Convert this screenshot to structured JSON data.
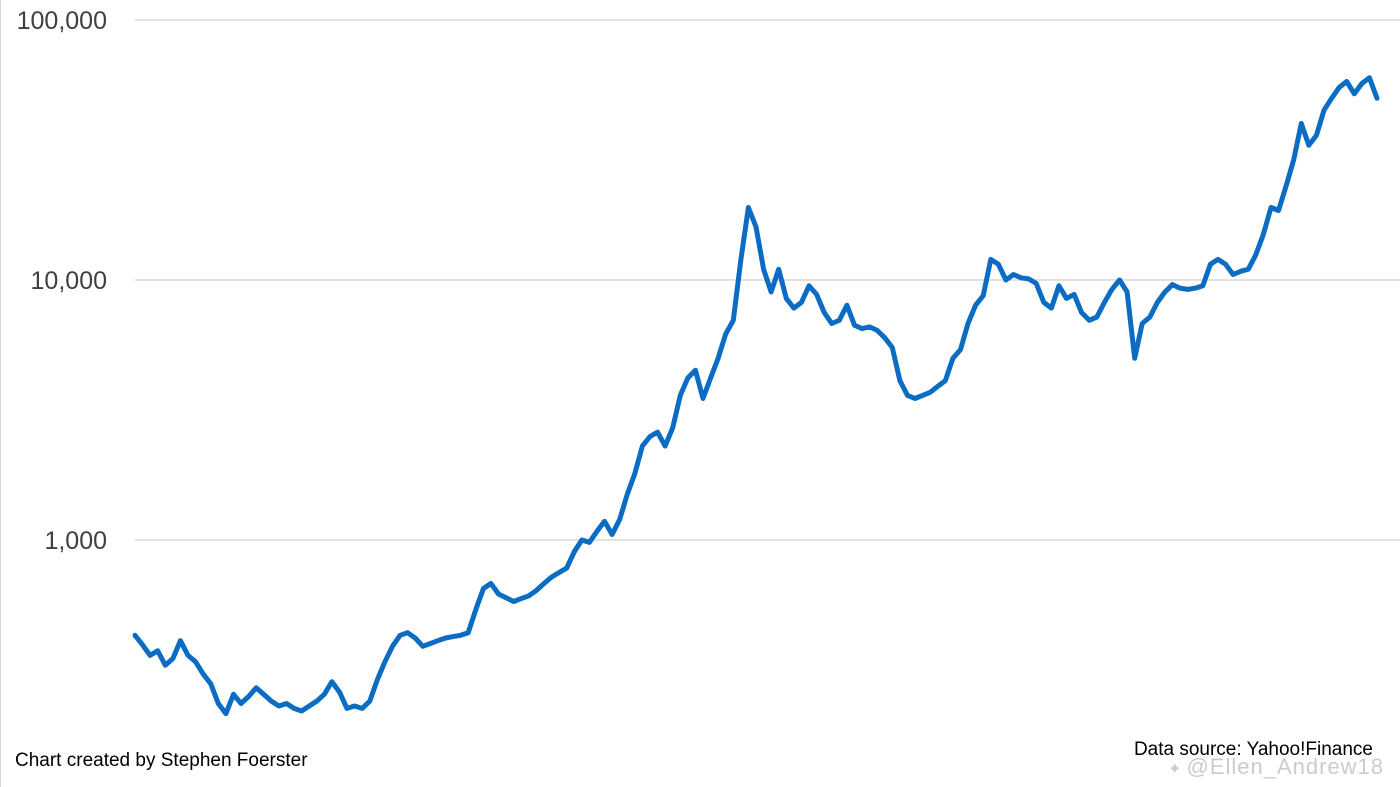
{
  "chart_data": {
    "type": "line",
    "title": "",
    "xlabel": "",
    "ylabel": "",
    "y_scale": "log",
    "ylim": [
      200,
      100000
    ],
    "y_ticks": [
      {
        "value": 1000,
        "label": "1,000"
      },
      {
        "value": 10000,
        "label": "10,000"
      },
      {
        "value": 100000,
        "label": "100,000"
      }
    ],
    "grid": "horizontal",
    "line_color": "#0a6cc2",
    "gridline_color": "#d9d9d9",
    "series": [
      {
        "values": [
          430,
          395,
          360,
          375,
          330,
          350,
          410,
          360,
          340,
          305,
          280,
          235,
          215,
          255,
          235,
          250,
          270,
          255,
          240,
          230,
          235,
          225,
          220,
          230,
          240,
          255,
          285,
          260,
          225,
          230,
          225,
          240,
          290,
          340,
          390,
          430,
          440,
          420,
          390,
          400,
          410,
          420,
          425,
          430,
          440,
          540,
          650,
          680,
          620,
          600,
          580,
          595,
          610,
          640,
          680,
          720,
          750,
          780,
          900,
          1000,
          980,
          1080,
          1180,
          1050,
          1200,
          1500,
          1800,
          2300,
          2500,
          2600,
          2300,
          2700,
          3600,
          4200,
          4500,
          3500,
          4200,
          5000,
          6200,
          7000,
          12000,
          19000,
          16000,
          11000,
          9000,
          11000,
          8500,
          7800,
          8200,
          9500,
          8800,
          7500,
          6800,
          7000,
          8000,
          6700,
          6500,
          6600,
          6400,
          6000,
          5500,
          4100,
          3600,
          3500,
          3600,
          3700,
          3900,
          4100,
          5000,
          5400,
          6800,
          8000,
          8700,
          12000,
          11500,
          10000,
          10500,
          10200,
          10100,
          9700,
          8200,
          7800,
          9500,
          8500,
          8800,
          7500,
          7000,
          7200,
          8200,
          9200,
          10000,
          9000,
          5000,
          6800,
          7200,
          8200,
          9000,
          9600,
          9300,
          9200,
          9300,
          9500,
          11500,
          12000,
          11500,
          10500,
          10800,
          11000,
          12500,
          15000,
          19000,
          18500,
          23000,
          29000,
          40000,
          33000,
          36000,
          45000,
          50000,
          55000,
          58000,
          52000,
          57000,
          60000,
          50000
        ]
      }
    ]
  },
  "footer": {
    "credit": "Chart created by Stephen Foerster",
    "source": "Data source: Yahoo!Finance"
  },
  "watermark": {
    "icon": "sparkle-icon",
    "text": "@Ellen_Andrew18"
  }
}
